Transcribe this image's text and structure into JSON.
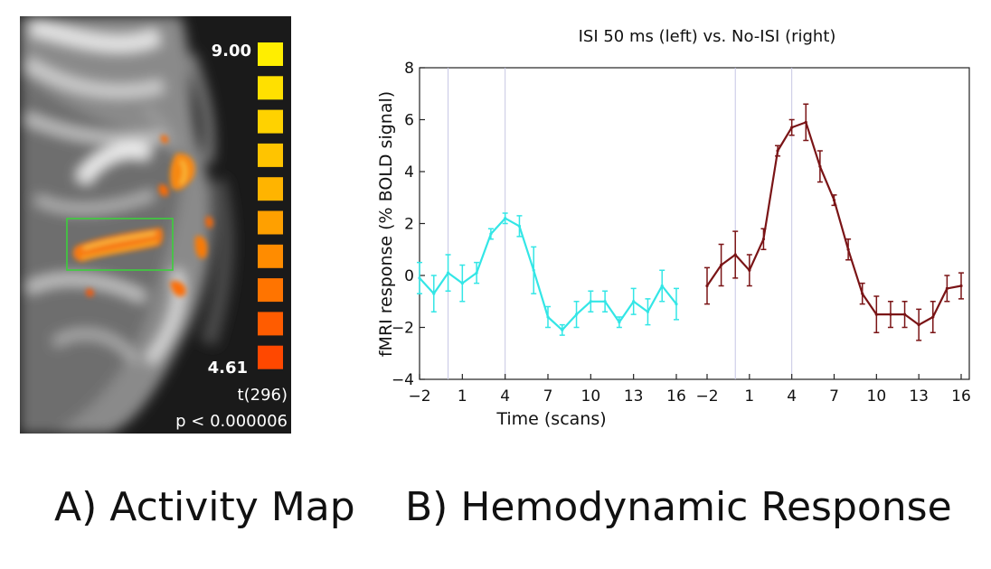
{
  "activity_map": {
    "colorbar_max": "9.00",
    "colorbar_min": "4.61",
    "statistic": "t(296)",
    "p_value": "p < 0.000006",
    "colorbar_colors": [
      "#ffee00",
      "#ffe000",
      "#ffd200",
      "#ffc400",
      "#ffb400",
      "#ffa000",
      "#ff8c00",
      "#ff7400",
      "#ff5c00",
      "#ff4800"
    ],
    "roi_color": "#3ccf3c"
  },
  "captions": {
    "a": "A) Activity Map",
    "b": "B) Hemodynamic Response"
  },
  "chart_data": {
    "type": "line",
    "title": "ISI 50 ms (left) vs. No-ISI (right)",
    "xlabel": "Time (scans)",
    "ylabel": "fMRI response (% BOLD signal)",
    "xlim": [
      -2,
      16
    ],
    "ylim": [
      -4,
      8
    ],
    "x_ticks": [
      -2,
      1,
      4,
      7,
      10,
      13,
      16
    ],
    "y_ticks": [
      -4,
      -2,
      0,
      2,
      4,
      6,
      8
    ],
    "vertical_markers": [
      0,
      4
    ],
    "x": [
      -2,
      -1,
      0,
      1,
      2,
      3,
      4,
      5,
      6,
      7,
      8,
      9,
      10,
      11,
      12,
      13,
      14,
      15,
      16
    ],
    "series": [
      {
        "name": "ISI 50 ms",
        "panel": "left",
        "color": "#33e6e6",
        "values": [
          -0.1,
          -0.7,
          0.1,
          -0.3,
          0.1,
          1.6,
          2.2,
          1.9,
          0.2,
          -1.6,
          -2.1,
          -1.5,
          -1.0,
          -1.0,
          -1.8,
          -1.0,
          -1.4,
          -0.4,
          -1.1
        ],
        "errors": [
          0.6,
          0.7,
          0.7,
          0.7,
          0.4,
          0.2,
          0.2,
          0.4,
          0.9,
          0.4,
          0.2,
          0.5,
          0.4,
          0.4,
          0.2,
          0.5,
          0.5,
          0.6,
          0.6
        ]
      },
      {
        "name": "No-ISI",
        "panel": "right",
        "color": "#7a1416",
        "values": [
          -0.4,
          0.4,
          0.8,
          0.2,
          1.4,
          4.8,
          5.7,
          5.9,
          4.2,
          2.9,
          1.0,
          -0.7,
          -1.5,
          -1.5,
          -1.5,
          -1.9,
          -1.6,
          -0.5,
          -0.4
        ],
        "errors": [
          0.7,
          0.8,
          0.9,
          0.6,
          0.4,
          0.2,
          0.3,
          0.7,
          0.6,
          0.2,
          0.4,
          0.4,
          0.7,
          0.5,
          0.5,
          0.6,
          0.6,
          0.5,
          0.5
        ]
      }
    ]
  }
}
